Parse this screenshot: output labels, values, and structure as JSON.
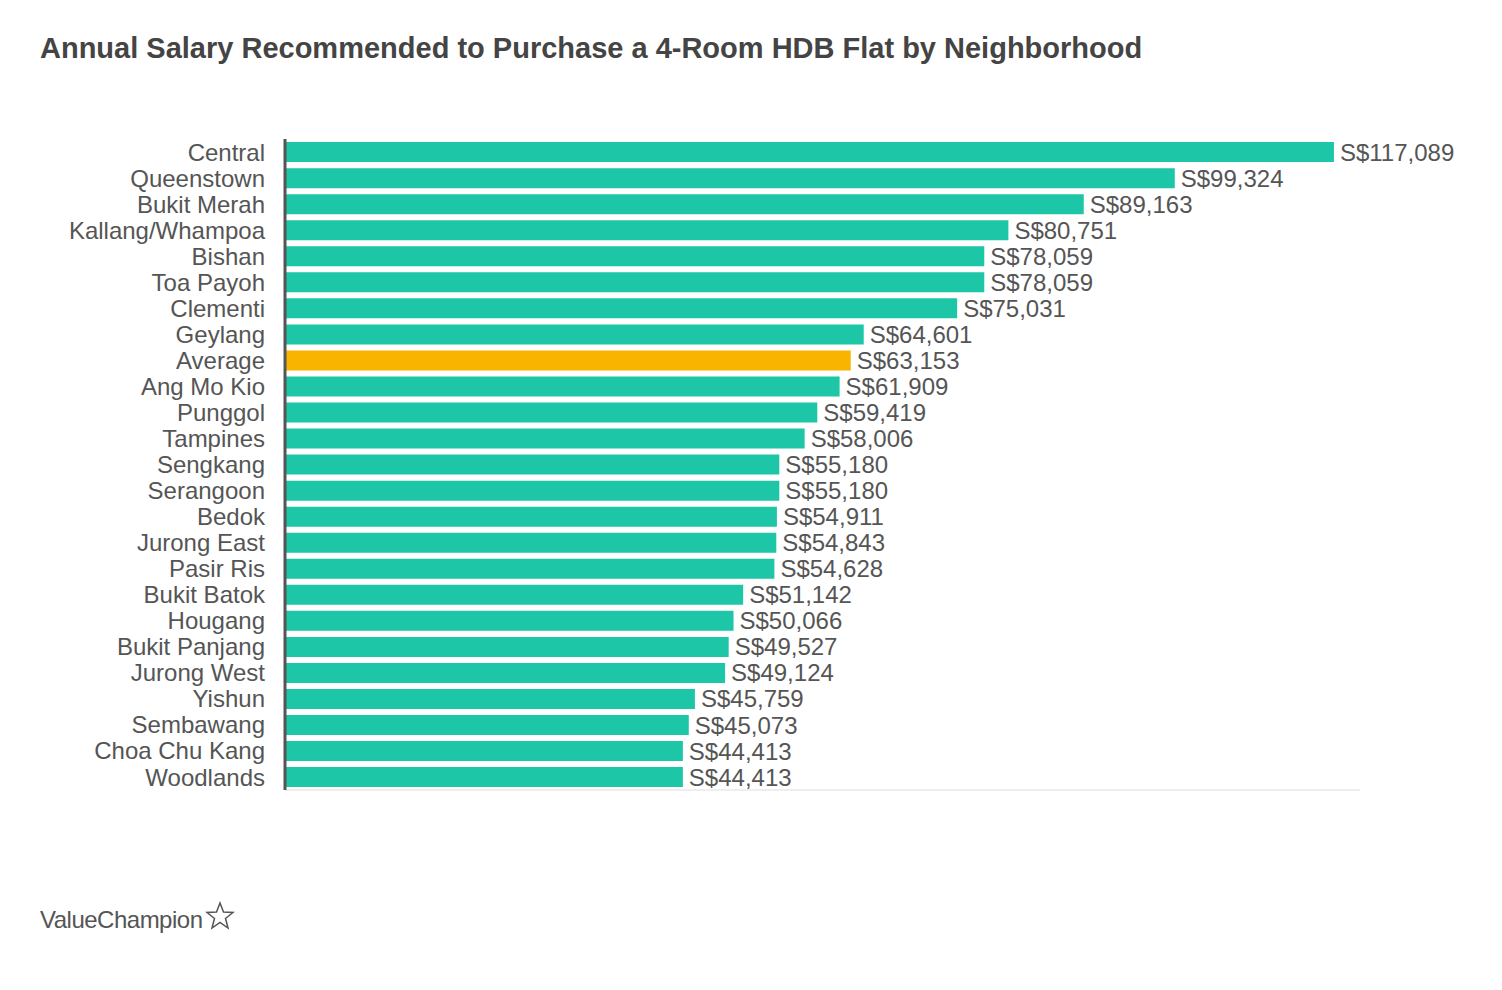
{
  "chart_data": {
    "type": "bar",
    "title": "Annual Salary Recommended to Purchase a 4-Room HDB Flat by Neighborhood",
    "source": "ValueChampion",
    "orientation": "horizontal",
    "categories": [
      "Central",
      "Queenstown",
      "Bukit Merah",
      "Kallang/Whampoa",
      "Bishan",
      "Toa Payoh",
      "Clementi",
      "Geylang",
      "Average",
      "Ang Mo Kio",
      "Punggol",
      "Tampines",
      "Sengkang",
      "Serangoon",
      "Bedok",
      "Jurong East",
      "Pasir Ris",
      "Bukit Batok",
      "Hougang",
      "Bukit Panjang",
      "Jurong West",
      "Yishun",
      "Sembawang",
      "Choa Chu Kang",
      "Woodlands"
    ],
    "values": [
      117089,
      99324,
      89163,
      80751,
      78059,
      78059,
      75031,
      64601,
      63153,
      61909,
      59419,
      58006,
      55180,
      55180,
      54911,
      54843,
      54628,
      51142,
      50066,
      49527,
      49124,
      45759,
      45073,
      44413,
      44413
    ],
    "value_labels": [
      "S$117,089",
      "S$99,324",
      "S$89,163",
      "S$80,751",
      "S$78,059",
      "S$78,059",
      "S$75,031",
      "S$64,601",
      "S$63,153",
      "S$61,909",
      "S$59,419",
      "S$58,006",
      "S$55,180",
      "S$55,180",
      "S$54,911",
      "S$54,843",
      "S$54,628",
      "S$51,142",
      "S$50,066",
      "S$49,527",
      "S$49,124",
      "S$45,759",
      "S$45,073",
      "S$44,413",
      "S$44,413"
    ],
    "colors": [
      "#1cc6a6",
      "#1cc6a6",
      "#1cc6a6",
      "#1cc6a6",
      "#1cc6a6",
      "#1cc6a6",
      "#1cc6a6",
      "#1cc6a6",
      "#f9b400",
      "#1cc6a6",
      "#1cc6a6",
      "#1cc6a6",
      "#1cc6a6",
      "#1cc6a6",
      "#1cc6a6",
      "#1cc6a6",
      "#1cc6a6",
      "#1cc6a6",
      "#1cc6a6",
      "#1cc6a6",
      "#1cc6a6",
      "#1cc6a6",
      "#1cc6a6",
      "#1cc6a6",
      "#1cc6a6"
    ],
    "xlim": [
      0,
      120000
    ],
    "data_labels": true,
    "tick_labels": "y",
    "grid": false
  }
}
